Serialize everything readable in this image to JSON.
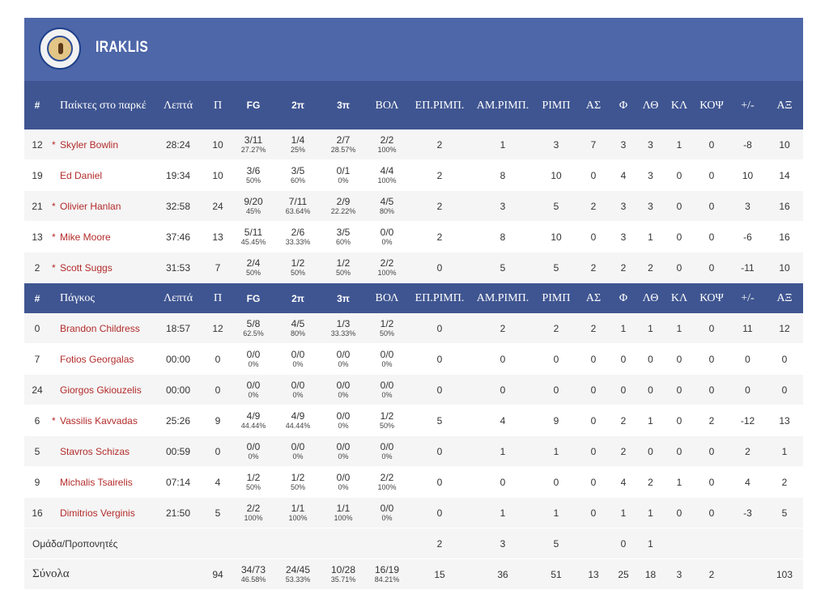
{
  "team": {
    "name": "IRAKLIS",
    "logo": "iraklis-club-crest"
  },
  "columns_starters": [
    "#",
    "Παίκτες στο παρκέ",
    "Λεπτά",
    "Π",
    "FG",
    "2π",
    "3π",
    "ΒΟΛ",
    "ΕΠ.ΡΙΜΠ.",
    "ΑΜ.ΡΙΜΠ.",
    "ΡΙΜΠ",
    "ΑΣ",
    "Φ",
    "ΛΘ",
    "ΚΛ",
    "ΚΟΨ",
    "+/-",
    "ΑΞ"
  ],
  "columns_bench": [
    "#",
    "Πάγκος",
    "Λεπτά",
    "Π",
    "FG",
    "2π",
    "3π",
    "ΒΟΛ",
    "ΕΠ.ΡΙΜΠ.",
    "ΑΜ.ΡΙΜΠ.",
    "ΡΙΜΠ",
    "ΑΣ",
    "Φ",
    "ΛΘ",
    "ΚΛ",
    "ΚΟΨ",
    "+/-",
    "ΑΞ"
  ],
  "starters": [
    {
      "num": "12",
      "star": "*",
      "name": "Skyler Bowlin",
      "min": "28:24",
      "pts": "10",
      "fg": "3/11",
      "fg_pct": "27.27%",
      "p2": "1/4",
      "p2_pct": "25%",
      "p3": "2/7",
      "p3_pct": "28.57%",
      "ft": "2/2",
      "ft_pct": "100%",
      "oreb": "2",
      "dreb": "1",
      "reb": "3",
      "ast": "7",
      "fouls": "3",
      "to": "3",
      "stl": "1",
      "blk": "0",
      "pm": "-8",
      "eff": "10"
    },
    {
      "num": "19",
      "star": "",
      "name": "Ed Daniel",
      "min": "19:34",
      "pts": "10",
      "fg": "3/6",
      "fg_pct": "50%",
      "p2": "3/5",
      "p2_pct": "60%",
      "p3": "0/1",
      "p3_pct": "0%",
      "ft": "4/4",
      "ft_pct": "100%",
      "oreb": "2",
      "dreb": "8",
      "reb": "10",
      "ast": "0",
      "fouls": "4",
      "to": "3",
      "stl": "0",
      "blk": "0",
      "pm": "10",
      "eff": "14"
    },
    {
      "num": "21",
      "star": "*",
      "name": "Olivier Hanlan",
      "min": "32:58",
      "pts": "24",
      "fg": "9/20",
      "fg_pct": "45%",
      "p2": "7/11",
      "p2_pct": "63.64%",
      "p3": "2/9",
      "p3_pct": "22.22%",
      "ft": "4/5",
      "ft_pct": "80%",
      "oreb": "2",
      "dreb": "3",
      "reb": "5",
      "ast": "2",
      "fouls": "3",
      "to": "3",
      "stl": "0",
      "blk": "0",
      "pm": "3",
      "eff": "16"
    },
    {
      "num": "13",
      "star": "*",
      "name": "Mike Moore",
      "min": "37:46",
      "pts": "13",
      "fg": "5/11",
      "fg_pct": "45.45%",
      "p2": "2/6",
      "p2_pct": "33.33%",
      "p3": "3/5",
      "p3_pct": "60%",
      "ft": "0/0",
      "ft_pct": "0%",
      "oreb": "2",
      "dreb": "8",
      "reb": "10",
      "ast": "0",
      "fouls": "3",
      "to": "1",
      "stl": "0",
      "blk": "0",
      "pm": "-6",
      "eff": "16"
    },
    {
      "num": "2",
      "star": "*",
      "name": "Scott Suggs",
      "min": "31:53",
      "pts": "7",
      "fg": "2/4",
      "fg_pct": "50%",
      "p2": "1/2",
      "p2_pct": "50%",
      "p3": "1/2",
      "p3_pct": "50%",
      "ft": "2/2",
      "ft_pct": "100%",
      "oreb": "0",
      "dreb": "5",
      "reb": "5",
      "ast": "2",
      "fouls": "2",
      "to": "2",
      "stl": "0",
      "blk": "0",
      "pm": "-11",
      "eff": "10"
    }
  ],
  "bench": [
    {
      "num": "0",
      "star": "",
      "name": "Brandon Childress",
      "min": "18:57",
      "pts": "12",
      "fg": "5/8",
      "fg_pct": "62.5%",
      "p2": "4/5",
      "p2_pct": "80%",
      "p3": "1/3",
      "p3_pct": "33.33%",
      "ft": "1/2",
      "ft_pct": "50%",
      "oreb": "0",
      "dreb": "2",
      "reb": "2",
      "ast": "2",
      "fouls": "1",
      "to": "1",
      "stl": "1",
      "blk": "0",
      "pm": "11",
      "eff": "12"
    },
    {
      "num": "7",
      "star": "",
      "name": "Fotios Georgalas",
      "min": "00:00",
      "pts": "0",
      "fg": "0/0",
      "fg_pct": "0%",
      "p2": "0/0",
      "p2_pct": "0%",
      "p3": "0/0",
      "p3_pct": "0%",
      "ft": "0/0",
      "ft_pct": "0%",
      "oreb": "0",
      "dreb": "0",
      "reb": "0",
      "ast": "0",
      "fouls": "0",
      "to": "0",
      "stl": "0",
      "blk": "0",
      "pm": "0",
      "eff": "0"
    },
    {
      "num": "24",
      "star": "",
      "name": "Giorgos Gkiouzelis",
      "min": "00:00",
      "pts": "0",
      "fg": "0/0",
      "fg_pct": "0%",
      "p2": "0/0",
      "p2_pct": "0%",
      "p3": "0/0",
      "p3_pct": "0%",
      "ft": "0/0",
      "ft_pct": "0%",
      "oreb": "0",
      "dreb": "0",
      "reb": "0",
      "ast": "0",
      "fouls": "0",
      "to": "0",
      "stl": "0",
      "blk": "0",
      "pm": "0",
      "eff": "0"
    },
    {
      "num": "6",
      "star": "*",
      "name": "Vassilis Kavvadas",
      "min": "25:26",
      "pts": "9",
      "fg": "4/9",
      "fg_pct": "44.44%",
      "p2": "4/9",
      "p2_pct": "44.44%",
      "p3": "0/0",
      "p3_pct": "0%",
      "ft": "1/2",
      "ft_pct": "50%",
      "oreb": "5",
      "dreb": "4",
      "reb": "9",
      "ast": "0",
      "fouls": "2",
      "to": "1",
      "stl": "0",
      "blk": "2",
      "pm": "-12",
      "eff": "13"
    },
    {
      "num": "5",
      "star": "",
      "name": "Stavros Schizas",
      "min": "00:59",
      "pts": "0",
      "fg": "0/0",
      "fg_pct": "0%",
      "p2": "0/0",
      "p2_pct": "0%",
      "p3": "0/0",
      "p3_pct": "0%",
      "ft": "0/0",
      "ft_pct": "0%",
      "oreb": "0",
      "dreb": "1",
      "reb": "1",
      "ast": "0",
      "fouls": "2",
      "to": "0",
      "stl": "0",
      "blk": "0",
      "pm": "2",
      "eff": "1"
    },
    {
      "num": "9",
      "star": "",
      "name": "Michalis Tsairelis",
      "min": "07:14",
      "pts": "4",
      "fg": "1/2",
      "fg_pct": "50%",
      "p2": "1/2",
      "p2_pct": "50%",
      "p3": "0/0",
      "p3_pct": "0%",
      "ft": "2/2",
      "ft_pct": "100%",
      "oreb": "0",
      "dreb": "0",
      "reb": "0",
      "ast": "0",
      "fouls": "4",
      "to": "2",
      "stl": "1",
      "blk": "0",
      "pm": "4",
      "eff": "2"
    },
    {
      "num": "16",
      "star": "",
      "name": "Dimitrios Verginis",
      "min": "21:50",
      "pts": "5",
      "fg": "2/2",
      "fg_pct": "100%",
      "p2": "1/1",
      "p2_pct": "100%",
      "p3": "1/1",
      "p3_pct": "100%",
      "ft": "0/0",
      "ft_pct": "0%",
      "oreb": "0",
      "dreb": "1",
      "reb": "1",
      "ast": "0",
      "fouls": "1",
      "to": "1",
      "stl": "0",
      "blk": "0",
      "pm": "-3",
      "eff": "5"
    }
  ],
  "team_row": {
    "label": "Ομάδα/Προπονητές",
    "oreb": "2",
    "dreb": "3",
    "reb": "5",
    "fouls": "0",
    "to": "1"
  },
  "totals": {
    "label": "Σύνολα",
    "pts": "94",
    "fg": "34/73",
    "fg_pct": "46.58%",
    "p2": "24/45",
    "p2_pct": "53.33%",
    "p3": "10/28",
    "p3_pct": "35.71%",
    "ft": "16/19",
    "ft_pct": "84.21%",
    "oreb": "15",
    "dreb": "36",
    "reb": "51",
    "ast": "13",
    "fouls": "25",
    "to": "18",
    "stl": "3",
    "blk": "2",
    "eff": "103"
  }
}
